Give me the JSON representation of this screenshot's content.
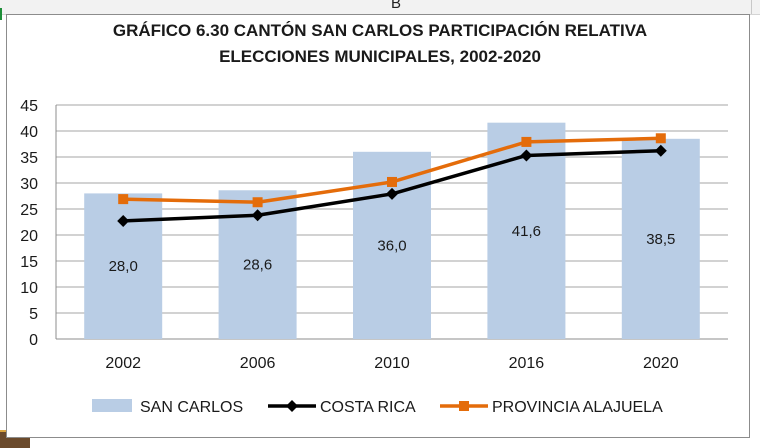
{
  "sheet": {
    "column_letter": "B"
  },
  "chart_data": {
    "type": "bar",
    "title_lines": [
      "GRÁFICO 6.30 CANTÓN SAN CARLOS PARTICIPACIÓN RELATIVA",
      "ELECCIONES MUNICIPALES, 2002-2020"
    ],
    "categories": [
      "2002",
      "2006",
      "2010",
      "2016",
      "2020"
    ],
    "ylim": [
      0,
      45
    ],
    "yticks": [
      "0",
      "5",
      "10",
      "15",
      "20",
      "25",
      "30",
      "35",
      "40",
      "45"
    ],
    "grid": true,
    "legend_position": "bottom",
    "series": [
      {
        "name": "SAN CARLOS",
        "kind": "bar",
        "color": "#b9cde5",
        "values": [
          28.0,
          28.6,
          36.0,
          41.6,
          38.5
        ],
        "data_labels": [
          "28,0",
          "28,6",
          "36,0",
          "41,6",
          "38,5"
        ]
      },
      {
        "name": "COSTA RICA",
        "kind": "line",
        "marker": "diamond",
        "color": "#000000",
        "values": [
          22.7,
          23.8,
          27.9,
          35.3,
          36.2
        ]
      },
      {
        "name": "PROVINCIA ALAJUELA",
        "kind": "line",
        "marker": "square",
        "color": "#e46c0a",
        "values": [
          26.9,
          26.3,
          30.2,
          37.9,
          38.6
        ]
      }
    ]
  }
}
